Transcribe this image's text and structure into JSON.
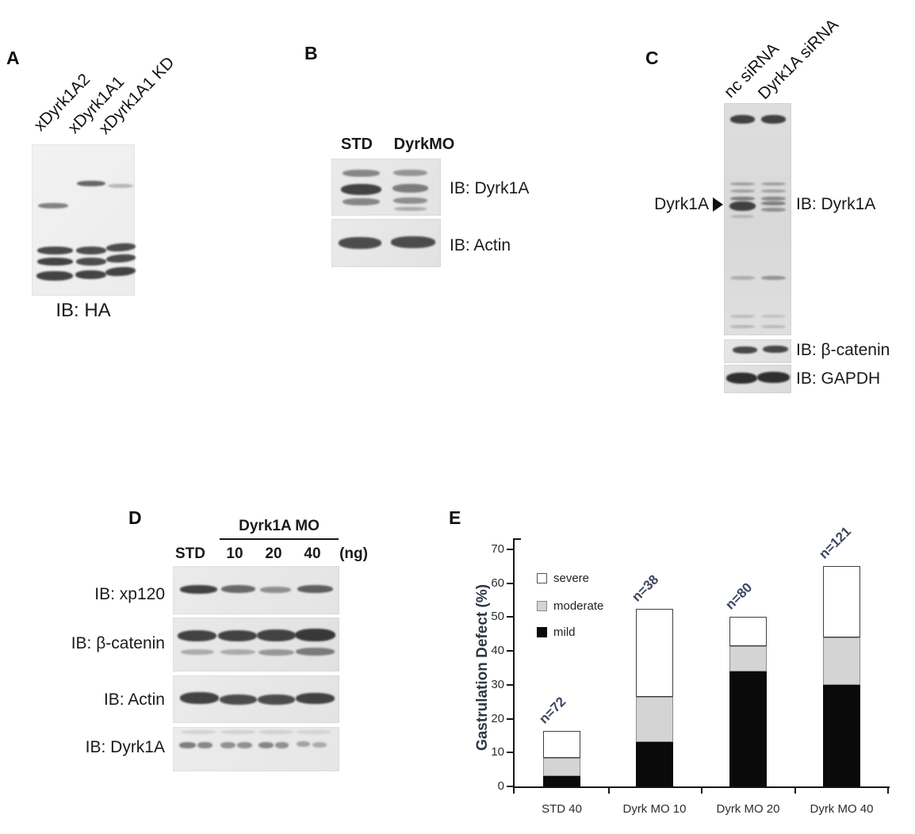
{
  "panel_a": {
    "letter": "A",
    "lanes": [
      "xDyrk1A2",
      "xDyrk1A1",
      "xDyrk1A1 KD"
    ],
    "caption": "IB: HA"
  },
  "panel_b": {
    "letter": "B",
    "lanes": [
      "STD",
      "DyrkMO"
    ],
    "blots": [
      "IB: Dyrk1A",
      "IB: Actin"
    ]
  },
  "panel_c": {
    "letter": "C",
    "lanes": [
      "nc siRNA",
      "Dyrk1A siRNA"
    ],
    "marker": "Dyrk1A",
    "blots": [
      "IB: Dyrk1A",
      "IB: β-catenin",
      "IB: GAPDH"
    ]
  },
  "panel_d": {
    "letter": "D",
    "group": "Dyrk1A MO",
    "lanes": [
      "STD",
      "10",
      "20",
      "40"
    ],
    "unit": "(ng)",
    "blots": [
      "IB: xp120",
      "IB: β-catenin",
      "IB: Actin",
      "IB: Dyrk1A"
    ]
  },
  "panel_e": {
    "letter": "E"
  },
  "chart_data": {
    "type": "bar",
    "stacked": true,
    "title": "",
    "xlabel": "",
    "ylabel": "Gastrulation Defect (%)",
    "ylim": [
      0,
      70
    ],
    "yticks": [
      0,
      10,
      20,
      30,
      40,
      50,
      60,
      70
    ],
    "grid": false,
    "legend_position": "upper-left",
    "categories": [
      "STD 40",
      "Dyrk MO 10",
      "Dyrk MO 20",
      "Dyrk MO 40"
    ],
    "series": [
      {
        "name": "mild",
        "color": "#0a0a0a",
        "values": [
          3,
          13,
          34,
          30
        ]
      },
      {
        "name": "moderate",
        "color": "#d4d4d4",
        "values": [
          5.5,
          13.5,
          7.5,
          14
        ]
      },
      {
        "name": "severe",
        "color": "#ffffff",
        "values": [
          8,
          26,
          8.5,
          21
        ]
      }
    ],
    "totals": [
      16.5,
      52.5,
      50,
      65
    ],
    "bar_annotations": [
      "n=72",
      "n=38",
      "n=80",
      "n=121"
    ],
    "legend": [
      "severe",
      "moderate",
      "mild"
    ],
    "annotation_color": "#3b4660"
  }
}
